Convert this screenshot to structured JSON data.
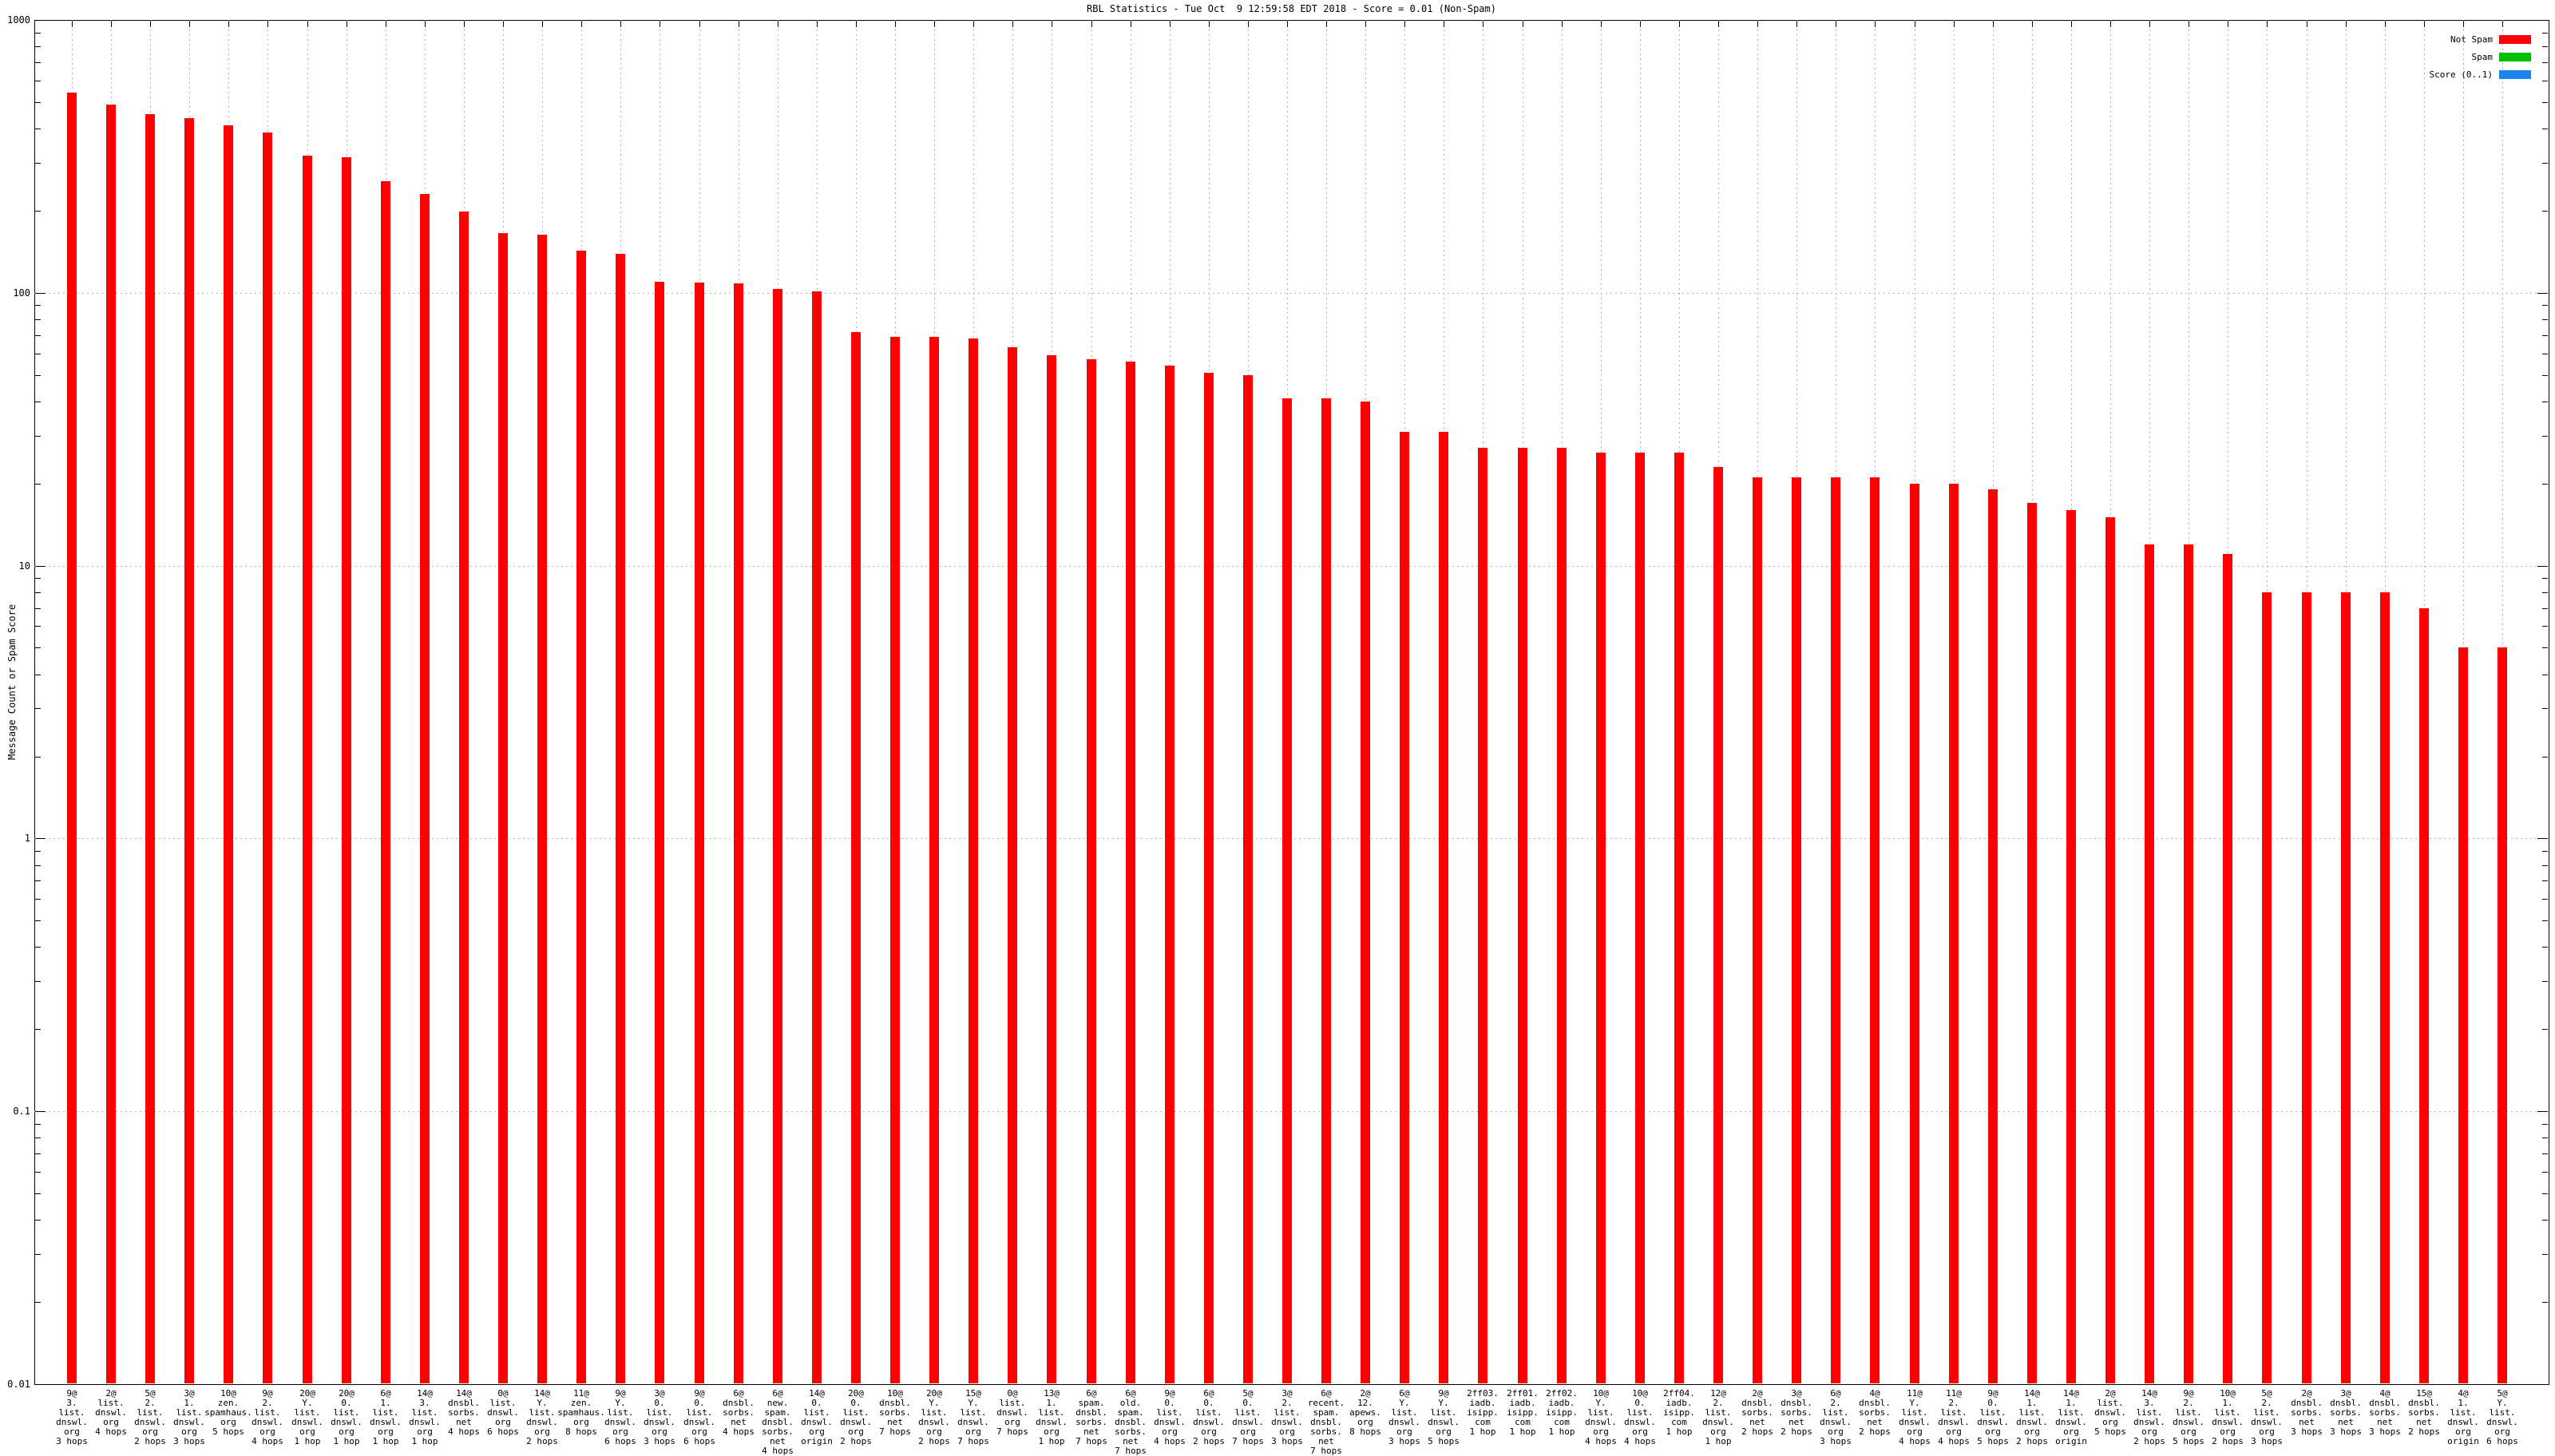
{
  "title": "RBL Statistics - Tue Oct  9 12:59:58 EDT 2018 - Score = 0.01 (Non-Spam)",
  "legend": [
    {
      "label": "Not Spam",
      "color": "#ff0000"
    },
    {
      "label": "Spam",
      "color": "#00c000"
    },
    {
      "label": "Score (0..1)",
      "color": "#1c86ee"
    }
  ],
  "chart_data": {
    "type": "bar",
    "title": "RBL Statistics - Tue Oct  9 12:59:58 EDT 2018 - Score = 0.01 (Non-Spam)",
    "ylabel": "Message Count or Spam Score",
    "yscale": "log",
    "ylim": [
      0.01,
      1000
    ],
    "y_ticks": [
      "1000",
      "100",
      "10",
      "1",
      "0.1",
      "0.01"
    ],
    "grid": true,
    "legend_position": "top-right",
    "bar_color": "#ff0000",
    "categories": [
      [
        "9@",
        "3.",
        "list.",
        "dnswl.",
        "org",
        "3 hops"
      ],
      [
        "2@",
        "list.",
        "dnswl.",
        "org",
        "4 hops"
      ],
      [
        "5@",
        "2.",
        "list.",
        "dnswl.",
        "org",
        "2 hops"
      ],
      [
        "3@",
        "1.",
        "list.",
        "dnswl.",
        "org",
        "3 hops"
      ],
      [
        "10@",
        "zen.",
        "spamhaus.",
        "org",
        "5 hops"
      ],
      [
        "9@",
        "2.",
        "list.",
        "dnswl.",
        "org",
        "4 hops"
      ],
      [
        "20@",
        "Y.",
        "list.",
        "dnswl.",
        "org",
        "1 hop"
      ],
      [
        "20@",
        "0.",
        "list.",
        "dnswl.",
        "org",
        "1 hop"
      ],
      [
        "6@",
        "1.",
        "list.",
        "dnswl.",
        "org",
        "1 hop"
      ],
      [
        "14@",
        "3.",
        "list.",
        "dnswl.",
        "org",
        "1 hop"
      ],
      [
        "14@",
        "dnsbl.",
        "sorbs.",
        "net",
        "4 hops"
      ],
      [
        "0@",
        "list.",
        "dnswl.",
        "org",
        "6 hops"
      ],
      [
        "14@",
        "Y.",
        "list.",
        "dnswl.",
        "org",
        "2 hops"
      ],
      [
        "11@",
        "zen.",
        "spamhaus.",
        "org",
        "8 hops"
      ],
      [
        "9@",
        "Y.",
        "list.",
        "dnswl.",
        "org",
        "6 hops"
      ],
      [
        "3@",
        "0.",
        "list.",
        "dnswl.",
        "org",
        "3 hops"
      ],
      [
        "9@",
        "0.",
        "list.",
        "dnswl.",
        "org",
        "6 hops"
      ],
      [
        "6@",
        "dnsbl.",
        "sorbs.",
        "net",
        "4 hops"
      ],
      [
        "6@",
        "new.",
        "spam.",
        "dnsbl.",
        "sorbs.",
        "net",
        "4 hops"
      ],
      [
        "14@",
        "0.",
        "list.",
        "dnswl.",
        "org",
        "origin"
      ],
      [
        "20@",
        "0.",
        "list.",
        "dnswl.",
        "org",
        "2 hops"
      ],
      [
        "10@",
        "dnsbl.",
        "sorbs.",
        "net",
        "7 hops"
      ],
      [
        "20@",
        "Y.",
        "list.",
        "dnswl.",
        "org",
        "2 hops"
      ],
      [
        "15@",
        "Y.",
        "list.",
        "dnswl.",
        "org",
        "7 hops"
      ],
      [
        "0@",
        "list.",
        "dnswl.",
        "org",
        "7 hops"
      ],
      [
        "13@",
        "1.",
        "list.",
        "dnswl.",
        "org",
        "1 hop"
      ],
      [
        "6@",
        "spam.",
        "dnsbl.",
        "sorbs.",
        "net",
        "7 hops"
      ],
      [
        "6@",
        "old.",
        "spam.",
        "dnsbl.",
        "sorbs.",
        "net",
        "7 hops"
      ],
      [
        "9@",
        "0.",
        "list.",
        "dnswl.",
        "org",
        "4 hops"
      ],
      [
        "6@",
        "0.",
        "list.",
        "dnswl.",
        "org",
        "2 hops"
      ],
      [
        "5@",
        "0.",
        "list.",
        "dnswl.",
        "org",
        "7 hops"
      ],
      [
        "3@",
        "2.",
        "list.",
        "dnswl.",
        "org",
        "3 hops"
      ],
      [
        "6@",
        "recent.",
        "spam.",
        "dnsbl.",
        "sorbs.",
        "net",
        "7 hops"
      ],
      [
        "2@",
        "12.",
        "apews.",
        "org",
        "8 hops"
      ],
      [
        "6@",
        "Y.",
        "list.",
        "dnswl.",
        "org",
        "3 hops"
      ],
      [
        "9@",
        "Y.",
        "list.",
        "dnswl.",
        "org",
        "5 hops"
      ],
      [
        "2ff03.",
        "iadb.",
        "isipp.",
        "com",
        "1 hop"
      ],
      [
        "2ff01.",
        "iadb.",
        "isipp.",
        "com",
        "1 hop"
      ],
      [
        "2ff02.",
        "iadb.",
        "isipp.",
        "com",
        "1 hop"
      ],
      [
        "10@",
        "Y.",
        "list.",
        "dnswl.",
        "org",
        "4 hops"
      ],
      [
        "10@",
        "0.",
        "list.",
        "dnswl.",
        "org",
        "4 hops"
      ],
      [
        "2ff04.",
        "iadb.",
        "isipp.",
        "com",
        "1 hop"
      ],
      [
        "12@",
        "2.",
        "list.",
        "dnswl.",
        "org",
        "1 hop"
      ],
      [
        "2@",
        "dnsbl.",
        "sorbs.",
        "net",
        "2 hops"
      ],
      [
        "3@",
        "dnsbl.",
        "sorbs.",
        "net",
        "2 hops"
      ],
      [
        "6@",
        "2.",
        "list.",
        "dnswl.",
        "org",
        "3 hops"
      ],
      [
        "4@",
        "dnsbl.",
        "sorbs.",
        "net",
        "2 hops"
      ],
      [
        "11@",
        "Y.",
        "list.",
        "dnswl.",
        "org",
        "4 hops"
      ],
      [
        "11@",
        "2.",
        "list.",
        "dnswl.",
        "org",
        "4 hops"
      ],
      [
        "9@",
        "0.",
        "list.",
        "dnswl.",
        "org",
        "5 hops"
      ],
      [
        "14@",
        "1.",
        "list.",
        "dnswl.",
        "org",
        "2 hops"
      ],
      [
        "14@",
        "1.",
        "list.",
        "dnswl.",
        "org",
        "origin"
      ],
      [
        "2@",
        "list.",
        "dnswl.",
        "org",
        "5 hops"
      ],
      [
        "14@",
        "3.",
        "list.",
        "dnswl.",
        "org",
        "2 hops"
      ],
      [
        "9@",
        "2.",
        "list.",
        "dnswl.",
        "org",
        "5 hops"
      ],
      [
        "10@",
        "1.",
        "list.",
        "dnswl.",
        "org",
        "2 hops"
      ],
      [
        "5@",
        "2.",
        "list.",
        "dnswl.",
        "org",
        "3 hops"
      ],
      [
        "2@",
        "dnsbl.",
        "sorbs.",
        "net",
        "3 hops"
      ],
      [
        "3@",
        "dnsbl.",
        "sorbs.",
        "net",
        "3 hops"
      ],
      [
        "4@",
        "dnsbl.",
        "sorbs.",
        "net",
        "3 hops"
      ],
      [
        "15@",
        "dnsbl.",
        "sorbs.",
        "net",
        "2 hops"
      ],
      [
        "4@",
        "1.",
        "list.",
        "dnswl.",
        "org",
        "origin"
      ],
      [
        "5@",
        "Y.",
        "list.",
        "dnswl.",
        "org",
        "6 hops"
      ]
    ],
    "values": [
      540,
      490,
      453,
      437,
      411,
      387,
      318,
      314,
      256,
      230,
      198,
      165,
      163,
      143,
      139,
      110,
      109,
      108,
      103,
      101,
      72,
      69,
      69,
      68,
      63,
      59,
      57,
      56,
      54,
      51,
      50,
      41,
      41,
      40,
      31,
      31,
      27,
      27,
      27,
      26,
      26,
      26,
      23,
      21,
      21,
      21,
      21,
      20,
      20,
      19,
      17,
      16,
      15,
      12,
      12,
      11,
      8,
      8,
      8,
      8,
      7,
      5,
      5
    ]
  }
}
